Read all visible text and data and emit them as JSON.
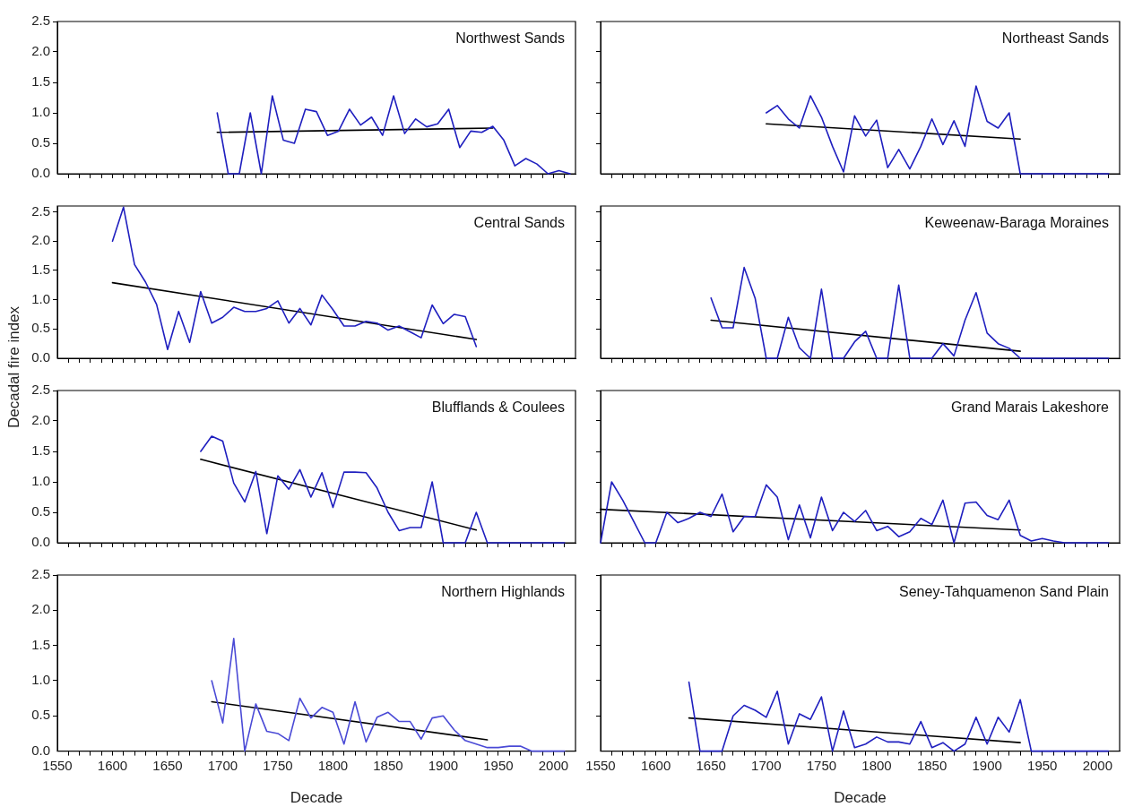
{
  "chart_data": [
    {
      "type": "line",
      "title": "Northwest Sands",
      "xlim": [
        1550,
        2020
      ],
      "ylim": [
        0,
        2.5
      ],
      "tick_labels": "y",
      "marker": "none",
      "xticks": [
        1550,
        {
          "value": 1560,
          "label": null
        },
        {
          "value": 1570,
          "label": null
        },
        {
          "value": 1580,
          "label": null
        },
        {
          "value": 1590,
          "label": null
        },
        1600,
        {
          "value": 1610,
          "label": null
        },
        {
          "value": 1620,
          "label": null
        },
        {
          "value": 1630,
          "label": null
        },
        {
          "value": 1640,
          "label": null
        },
        1650,
        {
          "value": 1660,
          "label": null
        },
        {
          "value": 1670,
          "label": null
        },
        {
          "value": 1680,
          "label": null
        },
        {
          "value": 1690,
          "label": null
        },
        1700,
        {
          "value": 1710,
          "label": null
        },
        {
          "value": 1720,
          "label": null
        },
        {
          "value": 1730,
          "label": null
        },
        {
          "value": 1740,
          "label": null
        },
        1750,
        {
          "value": 1760,
          "label": null
        },
        {
          "value": 1770,
          "label": null
        },
        {
          "value": 1780,
          "label": null
        },
        {
          "value": 1790,
          "label": null
        },
        1800,
        {
          "value": 1810,
          "label": null
        },
        {
          "value": 1820,
          "label": null
        },
        {
          "value": 1830,
          "label": null
        },
        {
          "value": 1840,
          "label": null
        },
        1850,
        {
          "value": 1860,
          "label": null
        },
        {
          "value": 1870,
          "label": null
        },
        {
          "value": 1880,
          "label": null
        },
        {
          "value": 1890,
          "label": null
        },
        1900,
        {
          "value": 1910,
          "label": null
        },
        {
          "value": 1920,
          "label": null
        },
        {
          "value": 1930,
          "label": null
        },
        {
          "value": 1940,
          "label": null
        },
        1950,
        {
          "value": 1960,
          "label": null
        },
        {
          "value": 1970,
          "label": null
        },
        {
          "value": 1980,
          "label": null
        },
        {
          "value": 1990,
          "label": null
        },
        2000,
        {
          "value": 2010,
          "label": null
        }
      ],
      "yticks": [
        {
          "value": 0,
          "label": "0.0"
        },
        0.5,
        {
          "value": 1,
          "label": "1.0"
        },
        1.5,
        {
          "value": 2,
          "label": "2.0"
        },
        2.5
      ],
      "series": [
        {
          "color": "#1f1fbf",
          "x": [
            1695,
            1705,
            1715,
            1725,
            1735,
            1745,
            1755,
            1765,
            1775,
            1785,
            1795,
            1805,
            1815,
            1825,
            1835,
            1845,
            1855,
            1865,
            1875,
            1885,
            1895,
            1905,
            1915,
            1925,
            1935,
            1945,
            1955,
            1965,
            1975,
            1985,
            1995,
            2005,
            2015
          ],
          "values": [
            1.0,
            0,
            0,
            1.0,
            0,
            1.28,
            0.55,
            0.5,
            1.06,
            1.02,
            0.63,
            0.7,
            1.06,
            0.8,
            0.93,
            0.63,
            1.28,
            0.66,
            0.9,
            0.77,
            0.82,
            1.06,
            0.43,
            0.7,
            0.68,
            0.78,
            0.55,
            0.13,
            0.25,
            0.16,
            0,
            0.05,
            0
          ]
        },
        {
          "color": "#000000",
          "x": [
            1695,
            1945
          ],
          "values": [
            0.68,
            0.75
          ]
        }
      ]
    },
    {
      "type": "line",
      "title": "Northeast Sands",
      "xlim": [
        1550,
        2020
      ],
      "ylim": [
        0,
        2.5
      ],
      "tick_labels": false,
      "marker": "none",
      "xticks": [
        1550,
        {
          "value": 1560,
          "label": null
        },
        {
          "value": 1570,
          "label": null
        },
        {
          "value": 1580,
          "label": null
        },
        {
          "value": 1590,
          "label": null
        },
        1600,
        {
          "value": 1610,
          "label": null
        },
        {
          "value": 1620,
          "label": null
        },
        {
          "value": 1630,
          "label": null
        },
        {
          "value": 1640,
          "label": null
        },
        1650,
        {
          "value": 1660,
          "label": null
        },
        {
          "value": 1670,
          "label": null
        },
        {
          "value": 1680,
          "label": null
        },
        {
          "value": 1690,
          "label": null
        },
        1700,
        {
          "value": 1710,
          "label": null
        },
        {
          "value": 1720,
          "label": null
        },
        {
          "value": 1730,
          "label": null
        },
        {
          "value": 1740,
          "label": null
        },
        1750,
        {
          "value": 1760,
          "label": null
        },
        {
          "value": 1770,
          "label": null
        },
        {
          "value": 1780,
          "label": null
        },
        {
          "value": 1790,
          "label": null
        },
        1800,
        {
          "value": 1810,
          "label": null
        },
        {
          "value": 1820,
          "label": null
        },
        {
          "value": 1830,
          "label": null
        },
        {
          "value": 1840,
          "label": null
        },
        1850,
        {
          "value": 1860,
          "label": null
        },
        {
          "value": 1870,
          "label": null
        },
        {
          "value": 1880,
          "label": null
        },
        {
          "value": 1890,
          "label": null
        },
        1900,
        {
          "value": 1910,
          "label": null
        },
        {
          "value": 1920,
          "label": null
        },
        {
          "value": 1930,
          "label": null
        },
        {
          "value": 1940,
          "label": null
        },
        1950,
        {
          "value": 1960,
          "label": null
        },
        {
          "value": 1970,
          "label": null
        },
        {
          "value": 1980,
          "label": null
        },
        {
          "value": 1990,
          "label": null
        },
        2000,
        {
          "value": 2010,
          "label": null
        }
      ],
      "yticks": [
        {
          "value": 0,
          "label": null
        },
        {
          "value": 0.5,
          "label": null
        },
        {
          "value": 1,
          "label": null
        },
        {
          "value": 1.5,
          "label": null
        },
        {
          "value": 2,
          "label": null
        },
        {
          "value": 2.5,
          "label": null
        }
      ],
      "series": [
        {
          "color": "#1f1fbf",
          "x": [
            1700,
            1710,
            1720,
            1730,
            1740,
            1750,
            1760,
            1770,
            1780,
            1790,
            1800,
            1810,
            1820,
            1830,
            1840,
            1850,
            1860,
            1870,
            1880,
            1890,
            1900,
            1910,
            1920,
            1930,
            1940,
            1950,
            1960,
            1970,
            1980,
            1990,
            2000,
            2010
          ],
          "values": [
            1.0,
            1.12,
            0.9,
            0.75,
            1.28,
            0.93,
            0.45,
            0.03,
            0.95,
            0.62,
            0.88,
            0.1,
            0.4,
            0.08,
            0.45,
            0.9,
            0.48,
            0.87,
            0.45,
            1.44,
            0.86,
            0.75,
            1.0,
            0,
            0,
            0,
            0,
            0,
            0,
            0,
            0,
            0
          ]
        },
        {
          "color": "#000000",
          "x": [
            1700,
            1930
          ],
          "values": [
            0.82,
            0.57
          ]
        }
      ]
    },
    {
      "type": "line",
      "title": "Central Sands",
      "ylabel": "Decadal fire index",
      "xlim": [
        1550,
        2020
      ],
      "ylim": [
        0,
        2.6
      ],
      "tick_labels": "y",
      "marker": "none",
      "xticks": [
        1550,
        {
          "value": 1560,
          "label": null
        },
        {
          "value": 1570,
          "label": null
        },
        {
          "value": 1580,
          "label": null
        },
        {
          "value": 1590,
          "label": null
        },
        1600,
        {
          "value": 1610,
          "label": null
        },
        {
          "value": 1620,
          "label": null
        },
        {
          "value": 1630,
          "label": null
        },
        {
          "value": 1640,
          "label": null
        },
        1650,
        {
          "value": 1660,
          "label": null
        },
        {
          "value": 1670,
          "label": null
        },
        {
          "value": 1680,
          "label": null
        },
        {
          "value": 1690,
          "label": null
        },
        1700,
        {
          "value": 1710,
          "label": null
        },
        {
          "value": 1720,
          "label": null
        },
        {
          "value": 1730,
          "label": null
        },
        {
          "value": 1740,
          "label": null
        },
        1750,
        {
          "value": 1760,
          "label": null
        },
        {
          "value": 1770,
          "label": null
        },
        {
          "value": 1780,
          "label": null
        },
        {
          "value": 1790,
          "label": null
        },
        1800,
        {
          "value": 1810,
          "label": null
        },
        {
          "value": 1820,
          "label": null
        },
        {
          "value": 1830,
          "label": null
        },
        {
          "value": 1840,
          "label": null
        },
        1850,
        {
          "value": 1860,
          "label": null
        },
        {
          "value": 1870,
          "label": null
        },
        {
          "value": 1880,
          "label": null
        },
        {
          "value": 1890,
          "label": null
        },
        1900,
        {
          "value": 1910,
          "label": null
        },
        {
          "value": 1920,
          "label": null
        },
        {
          "value": 1930,
          "label": null
        },
        {
          "value": 1940,
          "label": null
        },
        1950,
        {
          "value": 1960,
          "label": null
        },
        {
          "value": 1970,
          "label": null
        },
        {
          "value": 1980,
          "label": null
        },
        {
          "value": 1990,
          "label": null
        },
        2000,
        {
          "value": 2010,
          "label": null
        }
      ],
      "yticks": [
        {
          "value": 0,
          "label": "0.0"
        },
        0.5,
        {
          "value": 1,
          "label": "1.0"
        },
        1.5,
        {
          "value": 2,
          "label": "2.0"
        },
        2.5
      ],
      "series": [
        {
          "color": "#1f1fbf",
          "x": [
            1600,
            1610,
            1620,
            1630,
            1640,
            1650,
            1660,
            1670,
            1680,
            1690,
            1700,
            1710,
            1720,
            1730,
            1740,
            1750,
            1760,
            1770,
            1780,
            1790,
            1800,
            1810,
            1820,
            1830,
            1840,
            1850,
            1860,
            1870,
            1880,
            1890,
            1900,
            1910,
            1920,
            1930
          ],
          "values": [
            2.0,
            2.58,
            1.6,
            1.3,
            0.92,
            0.15,
            0.8,
            0.27,
            1.14,
            0.6,
            0.7,
            0.87,
            0.8,
            0.8,
            0.85,
            0.98,
            0.6,
            0.85,
            0.57,
            1.08,
            0.83,
            0.55,
            0.55,
            0.63,
            0.6,
            0.48,
            0.55,
            0.45,
            0.35,
            0.91,
            0.59,
            0.75,
            0.71,
            0.2
          ]
        },
        {
          "color": "#000000",
          "x": [
            1600,
            1930
          ],
          "values": [
            1.29,
            0.32
          ]
        }
      ]
    },
    {
      "type": "line",
      "title": "Keweenaw-Baraga Moraines",
      "xlim": [
        1550,
        2020
      ],
      "ylim": [
        0,
        2.6
      ],
      "tick_labels": false,
      "marker": "none",
      "xticks": [
        1550,
        {
          "value": 1560,
          "label": null
        },
        {
          "value": 1570,
          "label": null
        },
        {
          "value": 1580,
          "label": null
        },
        {
          "value": 1590,
          "label": null
        },
        1600,
        {
          "value": 1610,
          "label": null
        },
        {
          "value": 1620,
          "label": null
        },
        {
          "value": 1630,
          "label": null
        },
        {
          "value": 1640,
          "label": null
        },
        1650,
        {
          "value": 1660,
          "label": null
        },
        {
          "value": 1670,
          "label": null
        },
        {
          "value": 1680,
          "label": null
        },
        {
          "value": 1690,
          "label": null
        },
        1700,
        {
          "value": 1710,
          "label": null
        },
        {
          "value": 1720,
          "label": null
        },
        {
          "value": 1730,
          "label": null
        },
        {
          "value": 1740,
          "label": null
        },
        1750,
        {
          "value": 1760,
          "label": null
        },
        {
          "value": 1770,
          "label": null
        },
        {
          "value": 1780,
          "label": null
        },
        {
          "value": 1790,
          "label": null
        },
        1800,
        {
          "value": 1810,
          "label": null
        },
        {
          "value": 1820,
          "label": null
        },
        {
          "value": 1830,
          "label": null
        },
        {
          "value": 1840,
          "label": null
        },
        1850,
        {
          "value": 1860,
          "label": null
        },
        {
          "value": 1870,
          "label": null
        },
        {
          "value": 1880,
          "label": null
        },
        {
          "value": 1890,
          "label": null
        },
        1900,
        {
          "value": 1910,
          "label": null
        },
        {
          "value": 1920,
          "label": null
        },
        {
          "value": 1930,
          "label": null
        },
        {
          "value": 1940,
          "label": null
        },
        1950,
        {
          "value": 1960,
          "label": null
        },
        {
          "value": 1970,
          "label": null
        },
        {
          "value": 1980,
          "label": null
        },
        {
          "value": 1990,
          "label": null
        },
        2000,
        {
          "value": 2010,
          "label": null
        }
      ],
      "yticks": [
        {
          "value": 0,
          "label": null
        },
        {
          "value": 0.5,
          "label": null
        },
        {
          "value": 1,
          "label": null
        },
        {
          "value": 1.5,
          "label": null
        },
        {
          "value": 2,
          "label": null
        },
        {
          "value": 2.5,
          "label": null
        }
      ],
      "series": [
        {
          "color": "#1f1fbf",
          "x": [
            1650,
            1660,
            1670,
            1680,
            1690,
            1700,
            1710,
            1720,
            1730,
            1740,
            1750,
            1760,
            1770,
            1780,
            1790,
            1800,
            1810,
            1820,
            1830,
            1840,
            1850,
            1860,
            1870,
            1880,
            1890,
            1900,
            1910,
            1920,
            1930,
            1940,
            1950,
            1960,
            1970,
            1980,
            1990,
            2000,
            2010
          ],
          "values": [
            1.03,
            0.52,
            0.52,
            1.55,
            1.02,
            0,
            0,
            0.7,
            0.18,
            0,
            1.18,
            0,
            0,
            0.28,
            0.46,
            0,
            0,
            1.25,
            0,
            0,
            0,
            0.25,
            0.04,
            0.65,
            1.12,
            0.43,
            0.25,
            0.17,
            0,
            0,
            0,
            0,
            0,
            0,
            0,
            0,
            0
          ]
        },
        {
          "color": "#000000",
          "x": [
            1650,
            1930
          ],
          "values": [
            0.65,
            0.12
          ]
        }
      ]
    },
    {
      "type": "line",
      "title": "Blufflands & Coulees",
      "xlim": [
        1550,
        2020
      ],
      "ylim": [
        0,
        2.5
      ],
      "tick_labels": "y",
      "marker": "none",
      "xticks": [
        1550,
        {
          "value": 1560,
          "label": null
        },
        {
          "value": 1570,
          "label": null
        },
        {
          "value": 1580,
          "label": null
        },
        {
          "value": 1590,
          "label": null
        },
        1600,
        {
          "value": 1610,
          "label": null
        },
        {
          "value": 1620,
          "label": null
        },
        {
          "value": 1630,
          "label": null
        },
        {
          "value": 1640,
          "label": null
        },
        1650,
        {
          "value": 1660,
          "label": null
        },
        {
          "value": 1670,
          "label": null
        },
        {
          "value": 1680,
          "label": null
        },
        {
          "value": 1690,
          "label": null
        },
        1700,
        {
          "value": 1710,
          "label": null
        },
        {
          "value": 1720,
          "label": null
        },
        {
          "value": 1730,
          "label": null
        },
        {
          "value": 1740,
          "label": null
        },
        1750,
        {
          "value": 1760,
          "label": null
        },
        {
          "value": 1770,
          "label": null
        },
        {
          "value": 1780,
          "label": null
        },
        {
          "value": 1790,
          "label": null
        },
        1800,
        {
          "value": 1810,
          "label": null
        },
        {
          "value": 1820,
          "label": null
        },
        {
          "value": 1830,
          "label": null
        },
        {
          "value": 1840,
          "label": null
        },
        1850,
        {
          "value": 1860,
          "label": null
        },
        {
          "value": 1870,
          "label": null
        },
        {
          "value": 1880,
          "label": null
        },
        {
          "value": 1890,
          "label": null
        },
        1900,
        {
          "value": 1910,
          "label": null
        },
        {
          "value": 1920,
          "label": null
        },
        {
          "value": 1930,
          "label": null
        },
        {
          "value": 1940,
          "label": null
        },
        1950,
        {
          "value": 1960,
          "label": null
        },
        {
          "value": 1970,
          "label": null
        },
        {
          "value": 1980,
          "label": null
        },
        {
          "value": 1990,
          "label": null
        },
        2000,
        {
          "value": 2010,
          "label": null
        }
      ],
      "yticks": [
        {
          "value": 0,
          "label": "0.0"
        },
        0.5,
        {
          "value": 1,
          "label": "1.0"
        },
        1.5,
        {
          "value": 2,
          "label": "2.0"
        },
        2.5
      ],
      "series": [
        {
          "color": "#1f1fbf",
          "x": [
            1680,
            1690,
            1700,
            1710,
            1720,
            1730,
            1740,
            1750,
            1760,
            1770,
            1780,
            1790,
            1800,
            1810,
            1820,
            1830,
            1840,
            1850,
            1860,
            1870,
            1880,
            1890,
            1900,
            1910,
            1920,
            1930,
            1940,
            1950,
            1960,
            1970,
            1980,
            1990,
            2000,
            2010
          ],
          "values": [
            1.5,
            1.75,
            1.67,
            0.98,
            0.67,
            1.17,
            0.15,
            1.1,
            0.88,
            1.2,
            0.75,
            1.15,
            0.58,
            1.16,
            1.16,
            1.15,
            0.9,
            0.5,
            0.2,
            0.25,
            0.25,
            1.0,
            0,
            0,
            0,
            0.5,
            0,
            0,
            0,
            0,
            0,
            0,
            0,
            0
          ]
        },
        {
          "color": "#000000",
          "x": [
            1680,
            1930
          ],
          "values": [
            1.37,
            0.21
          ]
        }
      ]
    },
    {
      "type": "line",
      "title": "Grand Marais Lakeshore",
      "xlim": [
        1550,
        2020
      ],
      "ylim": [
        0,
        2.5
      ],
      "tick_labels": false,
      "marker": "none",
      "xticks": [
        1550,
        {
          "value": 1560,
          "label": null
        },
        {
          "value": 1570,
          "label": null
        },
        {
          "value": 1580,
          "label": null
        },
        {
          "value": 1590,
          "label": null
        },
        1600,
        {
          "value": 1610,
          "label": null
        },
        {
          "value": 1620,
          "label": null
        },
        {
          "value": 1630,
          "label": null
        },
        {
          "value": 1640,
          "label": null
        },
        1650,
        {
          "value": 1660,
          "label": null
        },
        {
          "value": 1670,
          "label": null
        },
        {
          "value": 1680,
          "label": null
        },
        {
          "value": 1690,
          "label": null
        },
        1700,
        {
          "value": 1710,
          "label": null
        },
        {
          "value": 1720,
          "label": null
        },
        {
          "value": 1730,
          "label": null
        },
        {
          "value": 1740,
          "label": null
        },
        1750,
        {
          "value": 1760,
          "label": null
        },
        {
          "value": 1770,
          "label": null
        },
        {
          "value": 1780,
          "label": null
        },
        {
          "value": 1790,
          "label": null
        },
        1800,
        {
          "value": 1810,
          "label": null
        },
        {
          "value": 1820,
          "label": null
        },
        {
          "value": 1830,
          "label": null
        },
        {
          "value": 1840,
          "label": null
        },
        1850,
        {
          "value": 1860,
          "label": null
        },
        {
          "value": 1870,
          "label": null
        },
        {
          "value": 1880,
          "label": null
        },
        {
          "value": 1890,
          "label": null
        },
        1900,
        {
          "value": 1910,
          "label": null
        },
        {
          "value": 1920,
          "label": null
        },
        {
          "value": 1930,
          "label": null
        },
        {
          "value": 1940,
          "label": null
        },
        1950,
        {
          "value": 1960,
          "label": null
        },
        {
          "value": 1970,
          "label": null
        },
        {
          "value": 1980,
          "label": null
        },
        {
          "value": 1990,
          "label": null
        },
        2000,
        {
          "value": 2010,
          "label": null
        }
      ],
      "yticks": [
        {
          "value": 0,
          "label": null
        },
        {
          "value": 0.5,
          "label": null
        },
        {
          "value": 1,
          "label": null
        },
        {
          "value": 1.5,
          "label": null
        },
        {
          "value": 2,
          "label": null
        },
        {
          "value": 2.5,
          "label": null
        }
      ],
      "series": [
        {
          "color": "#1f1fbf",
          "x": [
            1550,
            1560,
            1570,
            1580,
            1590,
            1600,
            1610,
            1620,
            1630,
            1640,
            1650,
            1660,
            1670,
            1680,
            1690,
            1700,
            1710,
            1720,
            1730,
            1740,
            1750,
            1760,
            1770,
            1780,
            1790,
            1800,
            1810,
            1820,
            1830,
            1840,
            1850,
            1860,
            1870,
            1880,
            1890,
            1900,
            1910,
            1920,
            1930,
            1940,
            1950,
            1960,
            1970,
            1980,
            1990,
            2000,
            2010
          ],
          "values": [
            0,
            1.0,
            0.7,
            0.35,
            0,
            0,
            0.5,
            0.33,
            0.4,
            0.5,
            0.43,
            0.8,
            0.18,
            0.43,
            0.43,
            0.95,
            0.75,
            0.05,
            0.62,
            0.08,
            0.75,
            0.2,
            0.5,
            0.35,
            0.53,
            0.2,
            0.27,
            0.1,
            0.18,
            0.4,
            0.3,
            0.7,
            0,
            0.65,
            0.67,
            0.45,
            0.38,
            0.7,
            0.12,
            0.03,
            0.07,
            0.03,
            0,
            0,
            0,
            0,
            0
          ]
        },
        {
          "color": "#000000",
          "x": [
            1550,
            1930
          ],
          "values": [
            0.55,
            0.21
          ]
        }
      ]
    },
    {
      "type": "line",
      "title": "Northern Highlands",
      "xlabel": "Decade",
      "xlim": [
        1550,
        2020
      ],
      "ylim": [
        0,
        2.5
      ],
      "marker": "none",
      "xticks": [
        1550,
        {
          "value": 1560,
          "label": null
        },
        {
          "value": 1570,
          "label": null
        },
        {
          "value": 1580,
          "label": null
        },
        {
          "value": 1590,
          "label": null
        },
        1600,
        {
          "value": 1610,
          "label": null
        },
        {
          "value": 1620,
          "label": null
        },
        {
          "value": 1630,
          "label": null
        },
        {
          "value": 1640,
          "label": null
        },
        1650,
        {
          "value": 1660,
          "label": null
        },
        {
          "value": 1670,
          "label": null
        },
        {
          "value": 1680,
          "label": null
        },
        {
          "value": 1690,
          "label": null
        },
        1700,
        {
          "value": 1710,
          "label": null
        },
        {
          "value": 1720,
          "label": null
        },
        {
          "value": 1730,
          "label": null
        },
        {
          "value": 1740,
          "label": null
        },
        1750,
        {
          "value": 1760,
          "label": null
        },
        {
          "value": 1770,
          "label": null
        },
        {
          "value": 1780,
          "label": null
        },
        {
          "value": 1790,
          "label": null
        },
        1800,
        {
          "value": 1810,
          "label": null
        },
        {
          "value": 1820,
          "label": null
        },
        {
          "value": 1830,
          "label": null
        },
        {
          "value": 1840,
          "label": null
        },
        1850,
        {
          "value": 1860,
          "label": null
        },
        {
          "value": 1870,
          "label": null
        },
        {
          "value": 1880,
          "label": null
        },
        {
          "value": 1890,
          "label": null
        },
        1900,
        {
          "value": 1910,
          "label": null
        },
        {
          "value": 1920,
          "label": null
        },
        {
          "value": 1930,
          "label": null
        },
        {
          "value": 1940,
          "label": null
        },
        1950,
        {
          "value": 1960,
          "label": null
        },
        {
          "value": 1970,
          "label": null
        },
        {
          "value": 1980,
          "label": null
        },
        {
          "value": 1990,
          "label": null
        },
        2000,
        {
          "value": 2010,
          "label": null
        }
      ],
      "yticks": [
        {
          "value": 0,
          "label": "0.0"
        },
        0.5,
        {
          "value": 1,
          "label": "1.0"
        },
        1.5,
        {
          "value": 2,
          "label": "2.0"
        },
        2.5
      ],
      "series": [
        {
          "color": "#4a4ad6",
          "x": [
            1690,
            1700,
            1710,
            1720,
            1730,
            1740,
            1750,
            1760,
            1770,
            1780,
            1790,
            1800,
            1810,
            1820,
            1830,
            1840,
            1850,
            1860,
            1870,
            1880,
            1890,
            1900,
            1910,
            1920,
            1930,
            1940,
            1950,
            1960,
            1970,
            1980,
            1990,
            2000,
            2010
          ],
          "values": [
            1.0,
            0.4,
            1.6,
            0,
            0.67,
            0.28,
            0.25,
            0.15,
            0.75,
            0.47,
            0.62,
            0.55,
            0.1,
            0.7,
            0.13,
            0.48,
            0.55,
            0.42,
            0.42,
            0.17,
            0.47,
            0.5,
            0.3,
            0.15,
            0.1,
            0.05,
            0.05,
            0.07,
            0.07,
            0,
            0,
            0,
            0
          ]
        },
        {
          "color": "#000000",
          "x": [
            1690,
            1940
          ],
          "values": [
            0.7,
            0.16
          ]
        }
      ]
    },
    {
      "type": "line",
      "title": "Seney-Tahquamenon Sand Plain",
      "xlabel": "Decade",
      "xlim": [
        1550,
        2020
      ],
      "ylim": [
        0,
        2.5
      ],
      "tick_labels": "x",
      "marker": "none",
      "xticks": [
        1550,
        {
          "value": 1560,
          "label": null
        },
        {
          "value": 1570,
          "label": null
        },
        {
          "value": 1580,
          "label": null
        },
        {
          "value": 1590,
          "label": null
        },
        1600,
        {
          "value": 1610,
          "label": null
        },
        {
          "value": 1620,
          "label": null
        },
        {
          "value": 1630,
          "label": null
        },
        {
          "value": 1640,
          "label": null
        },
        1650,
        {
          "value": 1660,
          "label": null
        },
        {
          "value": 1670,
          "label": null
        },
        {
          "value": 1680,
          "label": null
        },
        {
          "value": 1690,
          "label": null
        },
        1700,
        {
          "value": 1710,
          "label": null
        },
        {
          "value": 1720,
          "label": null
        },
        {
          "value": 1730,
          "label": null
        },
        {
          "value": 1740,
          "label": null
        },
        1750,
        {
          "value": 1760,
          "label": null
        },
        {
          "value": 1770,
          "label": null
        },
        {
          "value": 1780,
          "label": null
        },
        {
          "value": 1790,
          "label": null
        },
        1800,
        {
          "value": 1810,
          "label": null
        },
        {
          "value": 1820,
          "label": null
        },
        {
          "value": 1830,
          "label": null
        },
        {
          "value": 1840,
          "label": null
        },
        1850,
        {
          "value": 1860,
          "label": null
        },
        {
          "value": 1870,
          "label": null
        },
        {
          "value": 1880,
          "label": null
        },
        {
          "value": 1890,
          "label": null
        },
        1900,
        {
          "value": 1910,
          "label": null
        },
        {
          "value": 1920,
          "label": null
        },
        {
          "value": 1930,
          "label": null
        },
        {
          "value": 1940,
          "label": null
        },
        1950,
        {
          "value": 1960,
          "label": null
        },
        {
          "value": 1970,
          "label": null
        },
        {
          "value": 1980,
          "label": null
        },
        {
          "value": 1990,
          "label": null
        },
        2000,
        {
          "value": 2010,
          "label": null
        }
      ],
      "yticks": [
        {
          "value": 0,
          "label": null
        },
        {
          "value": 0.5,
          "label": null
        },
        {
          "value": 1,
          "label": null
        },
        {
          "value": 1.5,
          "label": null
        },
        {
          "value": 2,
          "label": null
        },
        {
          "value": 2.5,
          "label": null
        }
      ],
      "series": [
        {
          "color": "#1f1fbf",
          "x": [
            1630,
            1640,
            1650,
            1660,
            1670,
            1680,
            1690,
            1700,
            1710,
            1720,
            1730,
            1740,
            1750,
            1760,
            1770,
            1780,
            1790,
            1800,
            1810,
            1820,
            1830,
            1840,
            1850,
            1860,
            1870,
            1880,
            1890,
            1900,
            1910,
            1920,
            1930,
            1940,
            1950,
            1960,
            1970,
            1980,
            1990,
            2000,
            2010
          ],
          "values": [
            0.98,
            0,
            0,
            0,
            0.5,
            0.65,
            0.58,
            0.48,
            0.85,
            0.1,
            0.53,
            0.45,
            0.77,
            0,
            0.57,
            0.05,
            0.1,
            0.2,
            0.13,
            0.13,
            0.1,
            0.42,
            0.05,
            0.12,
            0,
            0.1,
            0.48,
            0.1,
            0.48,
            0.27,
            0.73,
            0,
            0,
            0,
            0,
            0,
            0,
            0,
            0
          ]
        },
        {
          "color": "#000000",
          "x": [
            1630,
            1930
          ],
          "values": [
            0.47,
            0.12
          ]
        }
      ]
    }
  ]
}
